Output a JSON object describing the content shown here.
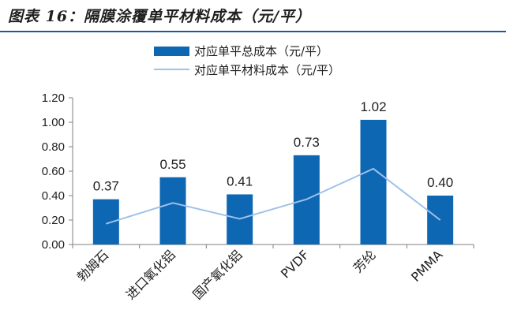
{
  "header": {
    "title": "图表 16：隔膜涂覆单平材料成本（元/平）"
  },
  "colors": {
    "bar": "#0e67b3",
    "line": "#9fc1ea",
    "accent": "#1a5aa0"
  },
  "chart_data": {
    "type": "bar",
    "title": "隔膜涂覆单平材料成本（元/平）",
    "categories": [
      "勃姆石",
      "进口氧化铝",
      "国产氧化铝",
      "PVDF",
      "芳纶",
      "PMMA"
    ],
    "series": [
      {
        "name": "对应单平总成本（元/平）",
        "type": "bar",
        "values": [
          0.37,
          0.55,
          0.41,
          0.73,
          1.02,
          0.4
        ],
        "labels": [
          "0.37",
          "0.55",
          "0.41",
          "0.73",
          "1.02",
          "0.40"
        ]
      },
      {
        "name": "对应单平材料成本（元/平）",
        "type": "line",
        "values": [
          0.17,
          0.34,
          0.21,
          0.37,
          0.62,
          0.2
        ]
      }
    ],
    "ylim": [
      0,
      1.2
    ],
    "yticks": [
      "0.00",
      "0.20",
      "0.40",
      "0.60",
      "0.80",
      "1.00",
      "1.20"
    ],
    "legend_position": "top",
    "grid": false
  }
}
